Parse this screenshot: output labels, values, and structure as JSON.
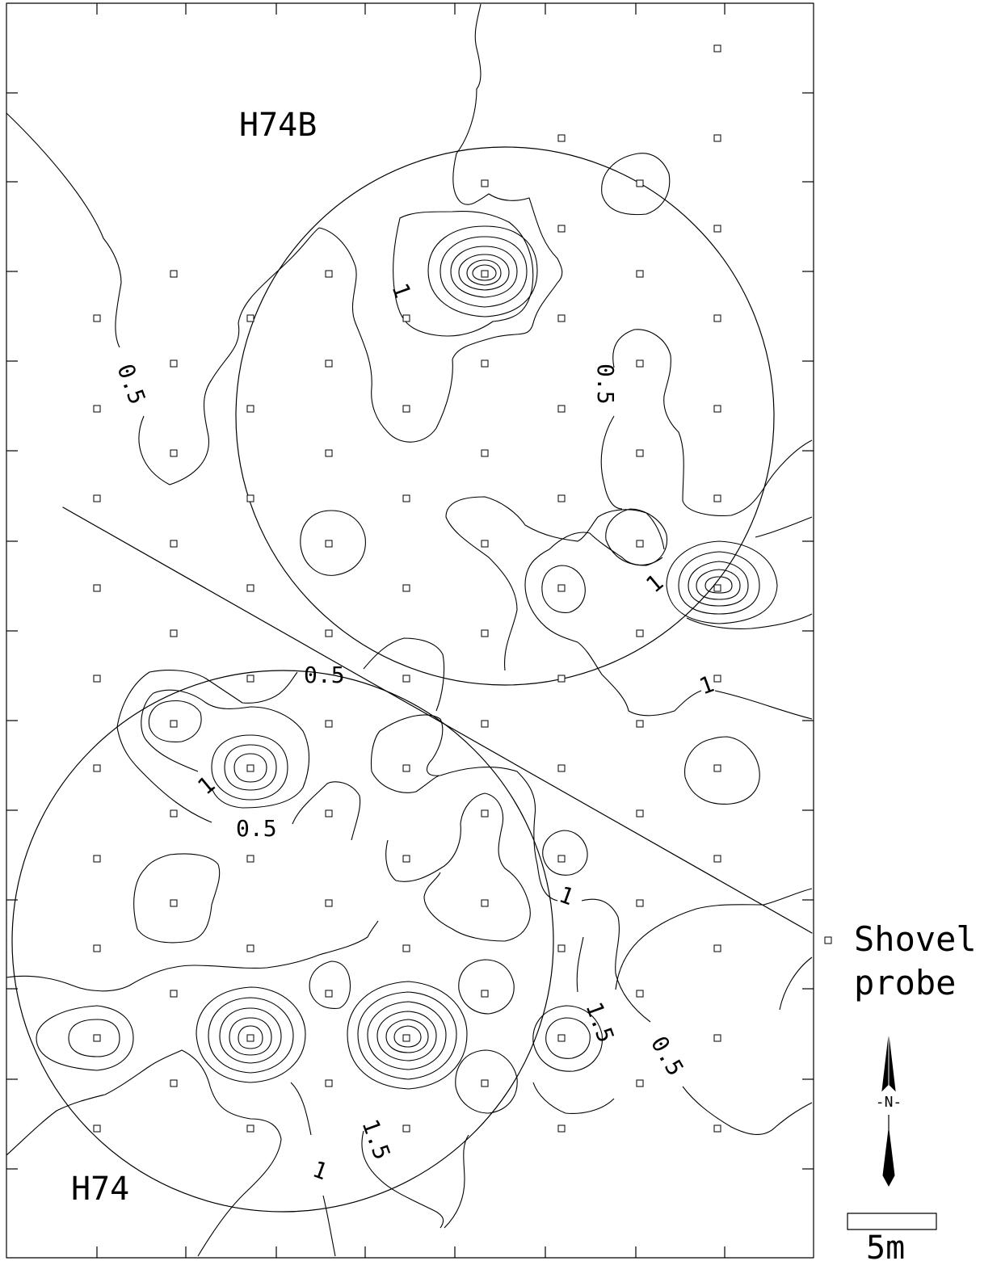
{
  "site_labels": {
    "north": "H74B",
    "south": "H74"
  },
  "legend": {
    "probe_label_line1": "Shovel",
    "probe_label_line2": "probe"
  },
  "north_arrow": {
    "letter": "-N-"
  },
  "scale_bar": {
    "label": "5m"
  },
  "contour_labels": [
    "0.5",
    "0.5",
    "1",
    "1",
    "0.5",
    "1",
    "0.5",
    "1",
    "1",
    "1.5",
    "0.5",
    "1",
    "1.5"
  ],
  "colors": {
    "ink": "#000000",
    "paper": "#ffffff"
  }
}
